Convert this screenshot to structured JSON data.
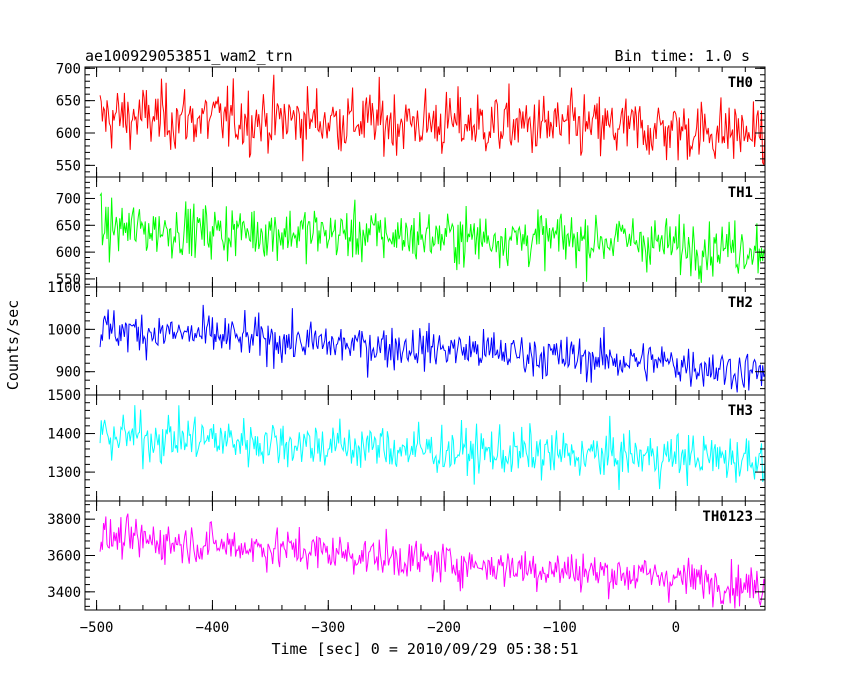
{
  "header": {
    "obs_id": "ae100929053851_wam2_trn",
    "bin_time": "Bin time: 1.0 s"
  },
  "axes": {
    "ylabel": "Counts/sec",
    "xlabel": "Time [sec] 0 = 2010/09/29 05:38:51"
  },
  "chart_data": {
    "type": "line",
    "title": "ae100929053851_wam2_trn",
    "xlabel": "Time [sec] 0 = 2010/09/29 05:38:51",
    "ylabel": "Counts/sec",
    "xlim": [
      -510,
      77
    ],
    "x_ticks": [
      -500,
      -400,
      -300,
      -200,
      -100,
      0
    ],
    "x_range": [
      -497,
      77
    ],
    "bin_time_s": 1.0,
    "grid": false,
    "legend": "none",
    "panels": [
      {
        "name": "TH0",
        "color": "#ff0000",
        "ylim": [
          532,
          702
        ],
        "y_ticks": [
          550,
          600,
          650,
          700
        ],
        "level": [
          [
            -497,
            625
          ],
          [
            -400,
            622
          ],
          [
            -300,
            620
          ],
          [
            -200,
            615
          ],
          [
            -100,
            610
          ],
          [
            0,
            605
          ],
          [
            77,
            600
          ]
        ],
        "noise": 25
      },
      {
        "name": "TH1",
        "color": "#00ff00",
        "ylim": [
          535,
          740
        ],
        "y_ticks": [
          550,
          600,
          650,
          700
        ],
        "level": [
          [
            -497,
            645
          ],
          [
            -400,
            640
          ],
          [
            -300,
            635
          ],
          [
            -200,
            628
          ],
          [
            -100,
            625
          ],
          [
            -30,
            622
          ],
          [
            0,
            612
          ],
          [
            77,
            608
          ]
        ],
        "noise": 25
      },
      {
        "name": "TH2",
        "color": "#0000ff",
        "ylim": [
          845,
          1100
        ],
        "y_ticks": [
          900,
          1000,
          1100
        ],
        "level": [
          [
            -497,
            1000
          ],
          [
            -400,
            985
          ],
          [
            -300,
            965
          ],
          [
            -200,
            955
          ],
          [
            -100,
            935
          ],
          [
            0,
            920
          ],
          [
            77,
            895
          ]
        ],
        "noise": 25
      },
      {
        "name": "TH3",
        "color": "#00ffff",
        "ylim": [
          1225,
          1500
        ],
        "y_ticks": [
          1300,
          1400,
          1500
        ],
        "level": [
          [
            -497,
            1395
          ],
          [
            -400,
            1385
          ],
          [
            -300,
            1370
          ],
          [
            -200,
            1355
          ],
          [
            -100,
            1345
          ],
          [
            0,
            1340
          ],
          [
            77,
            1335
          ]
        ],
        "noise": 32
      },
      {
        "name": "TH0123",
        "color": "#ff00ff",
        "ylim": [
          3300,
          3900
        ],
        "y_ticks": [
          3400,
          3600,
          3800
        ],
        "level": [
          [
            -497,
            3700
          ],
          [
            -400,
            3660
          ],
          [
            -300,
            3620
          ],
          [
            -200,
            3560
          ],
          [
            -100,
            3520
          ],
          [
            0,
            3480
          ],
          [
            77,
            3420
          ]
        ],
        "noise": 55
      }
    ]
  }
}
